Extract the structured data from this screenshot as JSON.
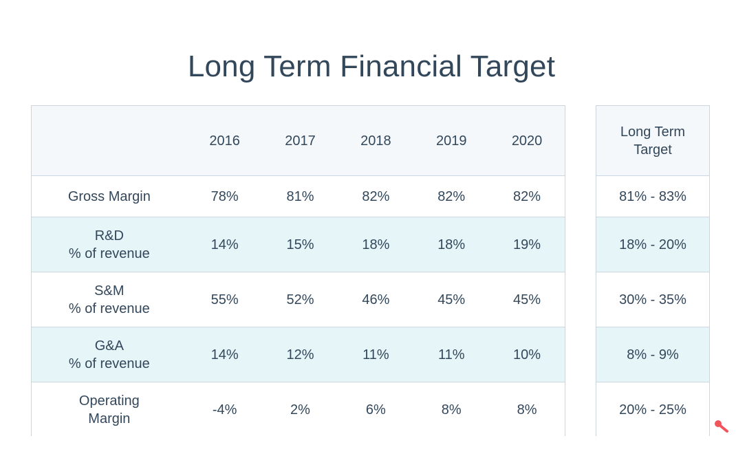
{
  "title": "Long Term Financial Target",
  "table": {
    "columns": [
      "2016",
      "2017",
      "2018",
      "2019",
      "2020"
    ],
    "target_header_line1": "Long Term",
    "target_header_line2": "Target",
    "rows": [
      {
        "label_line1": "Gross Margin",
        "label_line2": "",
        "values": [
          "78%",
          "81%",
          "82%",
          "82%",
          "82%"
        ],
        "target": "81% - 83%"
      },
      {
        "label_line1": "R&D",
        "label_line2": "% of revenue",
        "values": [
          "14%",
          "15%",
          "18%",
          "18%",
          "19%"
        ],
        "target": "18% - 20%"
      },
      {
        "label_line1": "S&M",
        "label_line2": "% of revenue",
        "values": [
          "55%",
          "52%",
          "46%",
          "45%",
          "45%"
        ],
        "target": "30% - 35%"
      },
      {
        "label_line1": "G&A",
        "label_line2": "% of revenue",
        "values": [
          "14%",
          "12%",
          "11%",
          "11%",
          "10%"
        ],
        "target": "8% - 9%"
      },
      {
        "label_line1": "Operating",
        "label_line2": "Margin",
        "values": [
          "-4%",
          "2%",
          "6%",
          "8%",
          "8%"
        ],
        "target": "20% - 25%"
      }
    ]
  },
  "colors": {
    "text": "#33475b",
    "header_bg": "#f5f8fa",
    "alt_row_bg": "#e5f5f8",
    "border": "#cbd6e2",
    "pin_accent": "#f2545b"
  },
  "icons": {
    "pin": "sprocket-pin-icon"
  }
}
